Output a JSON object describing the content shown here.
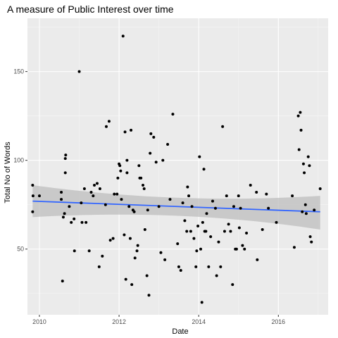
{
  "chart_data": {
    "type": "scatter",
    "title": "A measure of Public Interest over time",
    "xlabel": "Date",
    "ylabel": "Total No of Words",
    "x_is_year": true,
    "xlim": [
      2009.7,
      2017.25
    ],
    "ylim": [
      13,
      180
    ],
    "x_ticks": [
      2010,
      2012,
      2014,
      2016
    ],
    "x_tick_labels": [
      "2010",
      "2012",
      "2014",
      "2016"
    ],
    "y_ticks": [
      50,
      100,
      150
    ],
    "y_tick_labels": [
      "50",
      "100",
      "150"
    ],
    "grid": true,
    "legend": "none",
    "colors": {
      "panel_bg": "#ebebeb",
      "grid_major": "#ffffff",
      "grid_minor": "#f5f5f5",
      "point": "#000000",
      "smooth_line": "#3366ff",
      "ribbon": "#bebebe",
      "tick": "#333333"
    },
    "points": [
      [
        2009.83,
        86
      ],
      [
        2009.84,
        80
      ],
      [
        2009.83,
        71
      ],
      [
        2010.0,
        80
      ],
      [
        2010.55,
        82
      ],
      [
        2010.55,
        78
      ],
      [
        2010.58,
        32
      ],
      [
        2010.6,
        68
      ],
      [
        2010.63,
        70
      ],
      [
        2010.65,
        101
      ],
      [
        2010.66,
        103
      ],
      [
        2010.65,
        93
      ],
      [
        2010.75,
        74
      ],
      [
        2010.8,
        65
      ],
      [
        2010.87,
        67
      ],
      [
        2010.88,
        49
      ],
      [
        2011.0,
        150
      ],
      [
        2011.05,
        76
      ],
      [
        2011.07,
        65
      ],
      [
        2011.13,
        84
      ],
      [
        2011.17,
        65
      ],
      [
        2011.25,
        49
      ],
      [
        2011.3,
        82
      ],
      [
        2011.35,
        80
      ],
      [
        2011.38,
        86
      ],
      [
        2011.45,
        87
      ],
      [
        2011.5,
        40
      ],
      [
        2011.52,
        84
      ],
      [
        2011.58,
        46
      ],
      [
        2011.66,
        75
      ],
      [
        2011.68,
        119
      ],
      [
        2011.75,
        122
      ],
      [
        2011.78,
        55
      ],
      [
        2011.85,
        56
      ],
      [
        2011.88,
        81
      ],
      [
        2011.95,
        81
      ],
      [
        2011.97,
        90
      ],
      [
        2012.0,
        98
      ],
      [
        2012.02,
        97
      ],
      [
        2012.04,
        94
      ],
      [
        2012.06,
        78
      ],
      [
        2012.1,
        170
      ],
      [
        2012.13,
        58
      ],
      [
        2012.15,
        116
      ],
      [
        2012.17,
        33
      ],
      [
        2012.2,
        100
      ],
      [
        2012.2,
        93
      ],
      [
        2012.25,
        74
      ],
      [
        2012.28,
        56
      ],
      [
        2012.3,
        117
      ],
      [
        2012.32,
        30
      ],
      [
        2012.35,
        72
      ],
      [
        2012.38,
        71
      ],
      [
        2012.4,
        45
      ],
      [
        2012.45,
        49
      ],
      [
        2012.47,
        52
      ],
      [
        2012.5,
        97
      ],
      [
        2012.52,
        90
      ],
      [
        2012.55,
        90
      ],
      [
        2012.6,
        86
      ],
      [
        2012.63,
        84
      ],
      [
        2012.65,
        61
      ],
      [
        2012.7,
        35
      ],
      [
        2012.72,
        72
      ],
      [
        2012.75,
        24
      ],
      [
        2012.78,
        104
      ],
      [
        2012.8,
        115
      ],
      [
        2012.87,
        113
      ],
      [
        2012.93,
        99
      ],
      [
        2013.0,
        74
      ],
      [
        2013.05,
        48
      ],
      [
        2013.1,
        100
      ],
      [
        2013.15,
        44
      ],
      [
        2013.22,
        109
      ],
      [
        2013.28,
        78
      ],
      [
        2013.35,
        126
      ],
      [
        2013.47,
        53
      ],
      [
        2013.5,
        40
      ],
      [
        2013.55,
        38
      ],
      [
        2013.6,
        76
      ],
      [
        2013.65,
        66
      ],
      [
        2013.7,
        60
      ],
      [
        2013.72,
        85
      ],
      [
        2013.75,
        80
      ],
      [
        2013.8,
        60
      ],
      [
        2013.83,
        74
      ],
      [
        2013.88,
        56
      ],
      [
        2013.93,
        40
      ],
      [
        2013.95,
        49
      ],
      [
        2013.98,
        63
      ],
      [
        2014.02,
        102
      ],
      [
        2014.05,
        50
      ],
      [
        2014.08,
        20
      ],
      [
        2014.1,
        65
      ],
      [
        2014.13,
        95
      ],
      [
        2014.15,
        60
      ],
      [
        2014.18,
        60
      ],
      [
        2014.2,
        70
      ],
      [
        2014.25,
        40
      ],
      [
        2014.3,
        57
      ],
      [
        2014.35,
        77
      ],
      [
        2014.42,
        73
      ],
      [
        2014.45,
        35
      ],
      [
        2014.5,
        54
      ],
      [
        2014.55,
        40
      ],
      [
        2014.6,
        119
      ],
      [
        2014.65,
        60
      ],
      [
        2014.7,
        80
      ],
      [
        2014.75,
        64
      ],
      [
        2014.8,
        60
      ],
      [
        2014.85,
        30
      ],
      [
        2014.88,
        74
      ],
      [
        2014.92,
        50
      ],
      [
        2014.95,
        50
      ],
      [
        2015.0,
        80
      ],
      [
        2015.02,
        62
      ],
      [
        2015.05,
        73
      ],
      [
        2015.1,
        52
      ],
      [
        2015.15,
        50
      ],
      [
        2015.2,
        59
      ],
      [
        2015.3,
        86
      ],
      [
        2015.45,
        82
      ],
      [
        2015.47,
        44
      ],
      [
        2015.6,
        61
      ],
      [
        2015.7,
        81
      ],
      [
        2015.75,
        73
      ],
      [
        2015.95,
        65
      ],
      [
        2016.35,
        80
      ],
      [
        2016.4,
        51
      ],
      [
        2016.5,
        125
      ],
      [
        2016.52,
        106
      ],
      [
        2016.55,
        127
      ],
      [
        2016.57,
        117
      ],
      [
        2016.6,
        71
      ],
      [
        2016.63,
        98
      ],
      [
        2016.65,
        93
      ],
      [
        2016.68,
        75
      ],
      [
        2016.7,
        70
      ],
      [
        2016.75,
        102
      ],
      [
        2016.78,
        97
      ],
      [
        2016.8,
        57
      ],
      [
        2016.83,
        54
      ],
      [
        2016.9,
        72
      ],
      [
        2017.05,
        84
      ]
    ],
    "smooth": {
      "method": "lm",
      "x": [
        2009.83,
        2017.05
      ],
      "y": [
        77,
        71
      ],
      "ci_low": [
        68,
        61
      ],
      "ci_high": [
        86,
        80
      ]
    }
  }
}
